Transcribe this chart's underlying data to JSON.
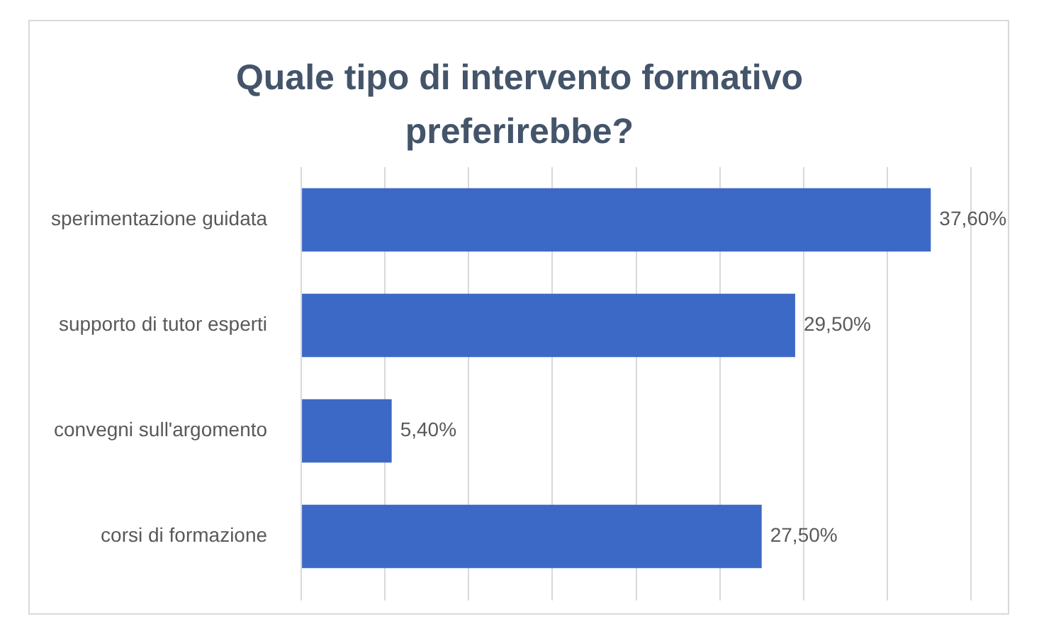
{
  "chart_data": {
    "type": "bar",
    "orientation": "horizontal",
    "title": "Quale tipo di intervento formativo preferirebbe?",
    "categories": [
      "sperimentazione guidata",
      "supporto di tutor esperti",
      "convegni sull'argomento",
      "corsi di formazione"
    ],
    "values": [
      37.6,
      29.5,
      5.4,
      27.5
    ],
    "value_labels": [
      "37,60%",
      "29,50%",
      "5,40%",
      "27,50%"
    ],
    "color": "#3d69c6",
    "xlim": [
      0,
      40
    ],
    "xticks": [
      {
        "value": 0,
        "label": null
      },
      {
        "value": 5,
        "label": null
      },
      {
        "value": 10,
        "label": null
      },
      {
        "value": 15,
        "label": null
      },
      {
        "value": 20,
        "label": null
      },
      {
        "value": 25,
        "label": null
      },
      {
        "value": 30,
        "label": null
      },
      {
        "value": 35,
        "label": null
      },
      {
        "value": 40,
        "label": null
      }
    ],
    "tick_labels": "y",
    "grid": "x",
    "legend": false
  }
}
